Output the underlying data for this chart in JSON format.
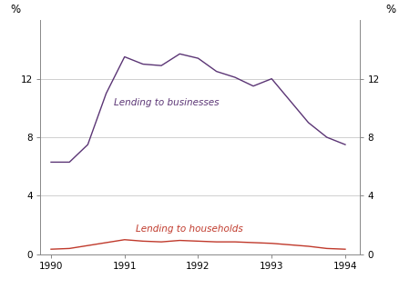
{
  "x_businesses": [
    1990.0,
    1990.25,
    1990.5,
    1990.75,
    1991.0,
    1991.25,
    1991.5,
    1991.75,
    1992.0,
    1992.25,
    1992.5,
    1992.75,
    1993.0,
    1993.25,
    1993.5,
    1993.75,
    1994.0
  ],
  "y_businesses": [
    6.3,
    6.3,
    7.5,
    11.0,
    13.5,
    13.0,
    12.9,
    13.7,
    13.4,
    12.5,
    12.1,
    11.5,
    12.0,
    10.5,
    9.0,
    8.0,
    7.5
  ],
  "x_households": [
    1990.0,
    1990.25,
    1990.5,
    1990.75,
    1991.0,
    1991.25,
    1991.5,
    1991.75,
    1992.0,
    1992.25,
    1992.5,
    1992.75,
    1993.0,
    1993.25,
    1993.5,
    1993.75,
    1994.0
  ],
  "y_households": [
    0.35,
    0.4,
    0.6,
    0.8,
    1.0,
    0.9,
    0.85,
    0.95,
    0.9,
    0.85,
    0.85,
    0.8,
    0.75,
    0.65,
    0.55,
    0.4,
    0.35
  ],
  "color_businesses": "#5b3575",
  "color_households": "#c0392b",
  "label_businesses": "Lending to businesses",
  "label_households": "Lending to households",
  "ylabel_left": "%",
  "ylabel_right": "%",
  "xlim": [
    1989.85,
    1994.2
  ],
  "ylim": [
    0,
    16
  ],
  "yticks": [
    0,
    4,
    8,
    12
  ],
  "xticks": [
    1990,
    1991,
    1992,
    1993,
    1994
  ],
  "background_color": "#ffffff",
  "grid_color": "#c8c8c8"
}
